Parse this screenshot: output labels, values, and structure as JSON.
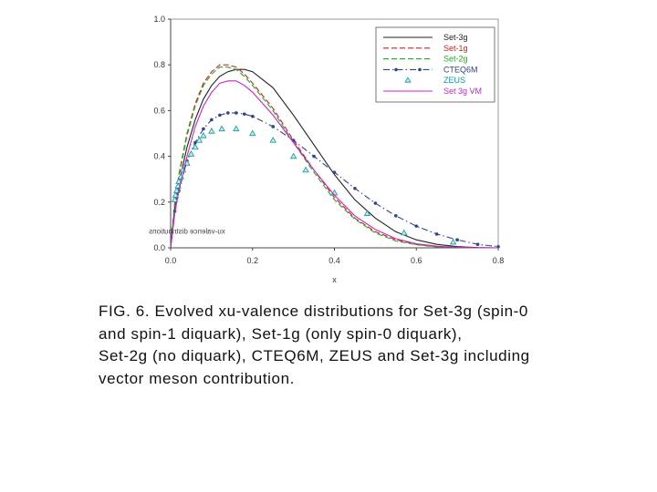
{
  "caption": {
    "lines": [
      "FIG. 6. Evolved xu-valence distributions for Set-3g (spin-0",
      "and spin-1 diquark), Set-1g (only spin-0 diquark),",
      "Set-2g (no diquark), CTEQ6M, ZEUS and Set-3g including",
      "vector meson contribution."
    ]
  },
  "chart_data": {
    "type": "line",
    "title": "",
    "xlabel": "x",
    "ylabel": "xu-valence distributions",
    "xlim": [
      0.0,
      0.8
    ],
    "ylim": [
      0.0,
      1.0
    ],
    "x_ticks": [
      "0.0",
      "0.2",
      "0.4",
      "0.6",
      "0.8"
    ],
    "y_ticks": [
      "0.0",
      "0.2",
      "0.4",
      "0.6",
      "0.8",
      "1.0"
    ],
    "grid": false,
    "legend_position": "top-right",
    "series": [
      {
        "name": "Set-3g",
        "color": "#222222",
        "style": "solid",
        "marker": "none",
        "x": [
          0,
          0.01,
          0.02,
          0.04,
          0.06,
          0.08,
          0.1,
          0.12,
          0.14,
          0.16,
          0.18,
          0.2,
          0.25,
          0.3,
          0.35,
          0.4,
          0.45,
          0.5,
          0.55,
          0.6,
          0.65,
          0.7,
          0.75,
          0.8
        ],
        "y": [
          0,
          0.18,
          0.28,
          0.44,
          0.56,
          0.65,
          0.71,
          0.75,
          0.77,
          0.78,
          0.78,
          0.77,
          0.7,
          0.58,
          0.45,
          0.32,
          0.21,
          0.13,
          0.07,
          0.035,
          0.015,
          0.005,
          0.001,
          0
        ]
      },
      {
        "name": "Set-1g",
        "color": "#cc2222",
        "style": "dashed",
        "marker": "none",
        "x": [
          0,
          0.01,
          0.02,
          0.04,
          0.06,
          0.08,
          0.1,
          0.12,
          0.14,
          0.16,
          0.18,
          0.2,
          0.25,
          0.3,
          0.35,
          0.4,
          0.45,
          0.5,
          0.55,
          0.6,
          0.65,
          0.7,
          0.75,
          0.8
        ],
        "y": [
          0,
          0.2,
          0.32,
          0.5,
          0.63,
          0.72,
          0.77,
          0.8,
          0.8,
          0.79,
          0.76,
          0.72,
          0.61,
          0.47,
          0.34,
          0.22,
          0.13,
          0.07,
          0.035,
          0.015,
          0.005,
          0.002,
          0,
          0
        ]
      },
      {
        "name": "Set-2g",
        "color": "#22aa22",
        "style": "dashed",
        "marker": "none",
        "x": [
          0,
          0.01,
          0.02,
          0.04,
          0.06,
          0.08,
          0.1,
          0.12,
          0.14,
          0.16,
          0.18,
          0.2,
          0.25,
          0.3,
          0.35,
          0.4,
          0.45,
          0.5,
          0.55,
          0.6,
          0.65,
          0.7,
          0.75,
          0.8
        ],
        "y": [
          0,
          0.19,
          0.31,
          0.49,
          0.62,
          0.71,
          0.76,
          0.79,
          0.79,
          0.78,
          0.75,
          0.71,
          0.6,
          0.46,
          0.33,
          0.21,
          0.125,
          0.065,
          0.03,
          0.013,
          0.004,
          0.001,
          0,
          0
        ]
      },
      {
        "name": "CTEQ6M",
        "color": "#334488",
        "style": "dashdot",
        "marker": "circle",
        "x": [
          0,
          0.01,
          0.02,
          0.04,
          0.06,
          0.08,
          0.1,
          0.12,
          0.14,
          0.16,
          0.18,
          0.2,
          0.25,
          0.3,
          0.35,
          0.4,
          0.45,
          0.5,
          0.55,
          0.6,
          0.65,
          0.7,
          0.75,
          0.8
        ],
        "y": [
          0,
          0.16,
          0.25,
          0.38,
          0.46,
          0.52,
          0.56,
          0.58,
          0.59,
          0.59,
          0.585,
          0.575,
          0.53,
          0.47,
          0.4,
          0.33,
          0.26,
          0.195,
          0.14,
          0.095,
          0.06,
          0.035,
          0.015,
          0.005
        ]
      },
      {
        "name": "ZEUS",
        "color": "#119999",
        "style": "none",
        "marker": "triangle",
        "x": [
          0.01,
          0.012,
          0.015,
          0.018,
          0.02,
          0.025,
          0.03,
          0.04,
          0.05,
          0.06,
          0.07,
          0.08,
          0.1,
          0.125,
          0.16,
          0.2,
          0.25,
          0.3,
          0.33,
          0.4,
          0.48,
          0.57,
          0.69
        ],
        "y": [
          0.21,
          0.23,
          0.25,
          0.27,
          0.29,
          0.31,
          0.34,
          0.37,
          0.41,
          0.44,
          0.47,
          0.49,
          0.51,
          0.52,
          0.52,
          0.5,
          0.47,
          0.4,
          0.34,
          0.24,
          0.15,
          0.065,
          0.025
        ]
      },
      {
        "name": "Set 3g VM",
        "color": "#cc22cc",
        "style": "solid",
        "marker": "none",
        "x": [
          0,
          0.01,
          0.02,
          0.04,
          0.06,
          0.08,
          0.1,
          0.12,
          0.14,
          0.16,
          0.18,
          0.2,
          0.25,
          0.3,
          0.35,
          0.4,
          0.45,
          0.5,
          0.55,
          0.6,
          0.65,
          0.7,
          0.75,
          0.8
        ],
        "y": [
          0,
          0.15,
          0.25,
          0.4,
          0.53,
          0.62,
          0.68,
          0.72,
          0.73,
          0.73,
          0.71,
          0.68,
          0.58,
          0.46,
          0.34,
          0.23,
          0.14,
          0.08,
          0.04,
          0.018,
          0.007,
          0.002,
          0,
          0
        ]
      }
    ]
  }
}
